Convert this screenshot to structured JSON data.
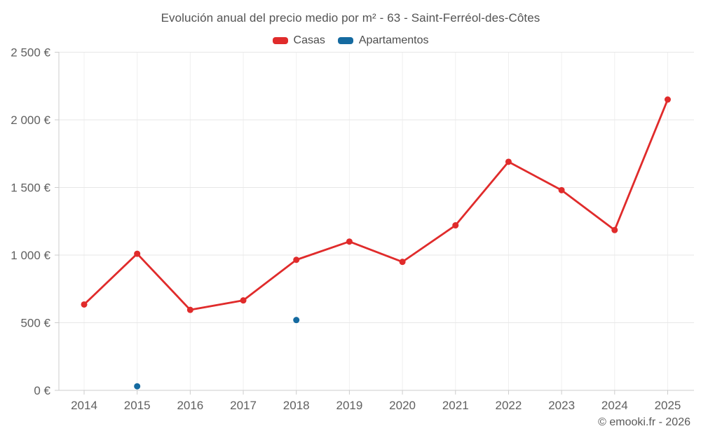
{
  "header": {
    "title": "Evolución anual del precio medio por m² - 63 - Saint-Ferréol-des-Côtes"
  },
  "chart_data": {
    "type": "line",
    "title": "Evolución anual del precio medio por m² - 63 - Saint-Ferréol-des-Côtes",
    "categories": [
      "2014",
      "2015",
      "2016",
      "2017",
      "2018",
      "2019",
      "2020",
      "2021",
      "2022",
      "2023",
      "2024",
      "2025"
    ],
    "series": [
      {
        "name": "Casas",
        "color": "#e02b2b",
        "marker_radius": 4.5,
        "values": [
          635,
          1010,
          595,
          665,
          965,
          1100,
          950,
          1220,
          1690,
          1480,
          1185,
          2150
        ]
      },
      {
        "name": "Apartamentos",
        "color": "#156aa0",
        "marker_radius": 4.5,
        "values": [
          null,
          30,
          null,
          null,
          520,
          null,
          null,
          null,
          null,
          null,
          null,
          null
        ]
      }
    ],
    "xlabel": "",
    "ylabel": "",
    "ylim": [
      0,
      2500
    ],
    "ytick_step": 500,
    "ytick_labels": [
      "0 €",
      "500 €",
      "1 000 €",
      "1 500 €",
      "2 000 €",
      "2 500 €"
    ],
    "grid": true,
    "legend_position": "top",
    "colors": {
      "h_gridline": "#e7e7e7",
      "v_gridline": "#f0f0f0",
      "axis_line": "#cccccc",
      "tick_label": "#606060"
    }
  },
  "footer": {
    "copyright": "© emooki.fr - 2026"
  }
}
